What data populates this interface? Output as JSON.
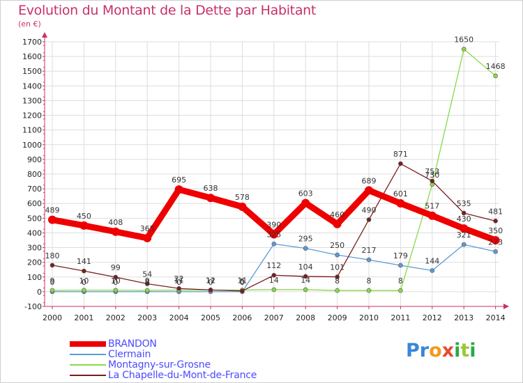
{
  "title": "Evolution du Montant de la Dette par Habitant",
  "subtitle": "(en €)",
  "logo": {
    "letters": [
      "P",
      "r",
      "o",
      "x",
      "i",
      "t",
      "i"
    ],
    "colors": [
      "#3a86d8",
      "#3a86d8",
      "#f09a1e",
      "#e84a32",
      "#2aa84a",
      "#9ac83a",
      "#2aa84a"
    ]
  },
  "chart_data": {
    "type": "line",
    "x": [
      "2000",
      "2001",
      "2002",
      "2003",
      "2004",
      "2005",
      "2006",
      "2007",
      "2008",
      "2009",
      "2010",
      "2011",
      "2012",
      "2013",
      "2014"
    ],
    "ylim": [
      -100,
      1700
    ],
    "yticks": [
      -100,
      0,
      100,
      200,
      300,
      400,
      500,
      600,
      700,
      800,
      900,
      1000,
      1100,
      1200,
      1300,
      1400,
      1500,
      1600,
      1700
    ],
    "grid": true,
    "legend_position": "bottom-left",
    "series": [
      {
        "name": "BRANDON",
        "color": "#ee0000",
        "values": [
          489,
          450,
          408,
          365,
          695,
          638,
          578,
          390,
          603,
          460,
          689,
          601,
          517,
          430,
          350
        ],
        "labels": [
          "489",
          "450",
          "408",
          "365",
          "695",
          "638",
          "578",
          "390",
          "603",
          "460",
          "689",
          "601",
          "517",
          "430",
          "350"
        ]
      },
      {
        "name": "Clermain",
        "color": "#5b9bd5",
        "values": [
          0,
          0,
          0,
          0,
          0,
          0,
          0,
          325,
          295,
          250,
          217,
          179,
          144,
          321,
          273
        ],
        "labels": [
          "0",
          "0",
          "0",
          "0",
          "0",
          "0",
          "0",
          "325",
          "295",
          "250",
          "217",
          "179",
          "144",
          "321",
          "273"
        ]
      },
      {
        "name": "Montagny-sur-Grosne",
        "color": "#8ad84a",
        "values": [
          9,
          10,
          10,
          9,
          11,
          11,
          11,
          14,
          14,
          8,
          8,
          8,
          730,
          1650,
          1468
        ],
        "labels": [
          "9",
          "10",
          "10",
          "9",
          "11",
          "11",
          "11",
          "14",
          "14",
          "8",
          "8",
          "8",
          "730",
          "1650",
          "1468"
        ]
      },
      {
        "name": "La Chapelle-du-Mont-de-France",
        "color": "#7a1e1e",
        "values": [
          180,
          141,
          99,
          54,
          22,
          12,
          5,
          112,
          104,
          101,
          490,
          871,
          753,
          535,
          481
        ],
        "labels": [
          "180",
          "141",
          "99",
          "54",
          "22",
          "12",
          "5",
          "112",
          "104",
          "101",
          "490",
          "871",
          "753",
          "535",
          "481"
        ]
      }
    ]
  }
}
